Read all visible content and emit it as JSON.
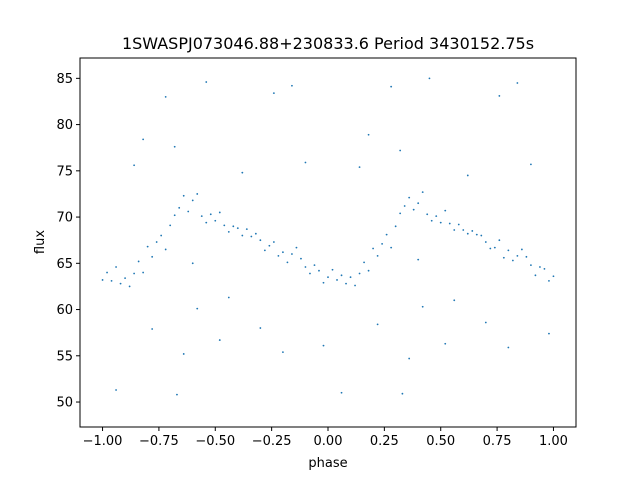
{
  "chart_data": {
    "type": "scatter",
    "title": "1SWASPJ073046.88+230833.6 Period 3430152.75s",
    "xlabel": "phase",
    "ylabel": "flux",
    "xlim": [
      -1.1,
      1.1
    ],
    "ylim": [
      47.3,
      87.2
    ],
    "grid": false,
    "legend": "none",
    "marker_color": "#1f77b4",
    "x_ticks": [
      {
        "value": -1.0,
        "label": "−1.00"
      },
      {
        "value": -0.75,
        "label": "−0.75"
      },
      {
        "value": -0.5,
        "label": "−0.50"
      },
      {
        "value": -0.25,
        "label": "−0.25"
      },
      {
        "value": 0.0,
        "label": "0.00"
      },
      {
        "value": 0.25,
        "label": "0.25"
      },
      {
        "value": 0.5,
        "label": "0.50"
      },
      {
        "value": 0.75,
        "label": "0.75"
      },
      {
        "value": 1.0,
        "label": "1.00"
      }
    ],
    "y_ticks": [
      {
        "value": 50,
        "label": "50"
      },
      {
        "value": 55,
        "label": "55"
      },
      {
        "value": 60,
        "label": "60"
      },
      {
        "value": 65,
        "label": "65"
      },
      {
        "value": 70,
        "label": "70"
      },
      {
        "value": 75,
        "label": "75"
      },
      {
        "value": 80,
        "label": "80"
      },
      {
        "value": 85,
        "label": "85"
      }
    ],
    "series": [
      {
        "points": [
          [
            -1.0,
            63.2
          ],
          [
            -0.98,
            64.0
          ],
          [
            -0.96,
            63.1
          ],
          [
            -0.94,
            64.6
          ],
          [
            -0.92,
            62.8
          ],
          [
            -0.9,
            63.4
          ],
          [
            -0.88,
            62.5
          ],
          [
            -0.86,
            63.9
          ],
          [
            -0.84,
            65.2
          ],
          [
            -0.82,
            64.0
          ],
          [
            -0.8,
            66.8
          ],
          [
            -0.78,
            65.7
          ],
          [
            -0.76,
            67.3
          ],
          [
            -0.74,
            68.0
          ],
          [
            -0.72,
            66.5
          ],
          [
            -0.7,
            69.1
          ],
          [
            -0.68,
            70.2
          ],
          [
            -0.66,
            71.0
          ],
          [
            -0.64,
            72.3
          ],
          [
            -0.62,
            70.6
          ],
          [
            -0.6,
            71.8
          ],
          [
            -0.58,
            72.5
          ],
          [
            -0.56,
            70.1
          ],
          [
            -0.54,
            69.4
          ],
          [
            -0.52,
            70.3
          ],
          [
            -0.5,
            69.6
          ],
          [
            -0.48,
            70.5
          ],
          [
            -0.46,
            69.1
          ],
          [
            -0.44,
            68.4
          ],
          [
            -0.42,
            69.0
          ],
          [
            -0.4,
            68.8
          ],
          [
            -0.38,
            68.0
          ],
          [
            -0.36,
            68.7
          ],
          [
            -0.34,
            67.9
          ],
          [
            -0.32,
            68.2
          ],
          [
            -0.3,
            67.5
          ],
          [
            -0.28,
            66.4
          ],
          [
            -0.26,
            66.9
          ],
          [
            -0.24,
            67.3
          ],
          [
            -0.22,
            65.8
          ],
          [
            -0.2,
            66.2
          ],
          [
            -0.18,
            65.1
          ],
          [
            -0.16,
            66.0
          ],
          [
            -0.14,
            66.7
          ],
          [
            -0.12,
            65.5
          ],
          [
            -0.1,
            64.6
          ],
          [
            -0.08,
            63.9
          ],
          [
            -0.06,
            64.8
          ],
          [
            -0.04,
            64.2
          ],
          [
            -0.02,
            62.9
          ],
          [
            0.0,
            63.5
          ],
          [
            0.02,
            64.3
          ],
          [
            0.04,
            63.2
          ],
          [
            0.06,
            63.7
          ],
          [
            0.08,
            62.8
          ],
          [
            0.1,
            63.5
          ],
          [
            0.12,
            62.6
          ],
          [
            0.14,
            63.9
          ],
          [
            0.16,
            65.1
          ],
          [
            0.18,
            64.2
          ],
          [
            0.2,
            66.6
          ],
          [
            0.22,
            65.8
          ],
          [
            0.24,
            67.1
          ],
          [
            0.26,
            68.1
          ],
          [
            0.28,
            66.7
          ],
          [
            0.3,
            69.0
          ],
          [
            0.32,
            70.4
          ],
          [
            0.34,
            71.2
          ],
          [
            0.36,
            72.1
          ],
          [
            0.38,
            70.8
          ],
          [
            0.4,
            71.5
          ],
          [
            0.42,
            72.7
          ],
          [
            0.44,
            70.3
          ],
          [
            0.46,
            69.6
          ],
          [
            0.48,
            70.1
          ],
          [
            0.5,
            69.4
          ],
          [
            0.52,
            70.7
          ],
          [
            0.54,
            69.3
          ],
          [
            0.56,
            68.6
          ],
          [
            0.58,
            69.2
          ],
          [
            0.6,
            68.6
          ],
          [
            0.62,
            68.2
          ],
          [
            0.64,
            68.5
          ],
          [
            0.66,
            68.1
          ],
          [
            0.68,
            68.0
          ],
          [
            0.7,
            67.3
          ],
          [
            0.72,
            66.6
          ],
          [
            0.74,
            66.7
          ],
          [
            0.76,
            67.5
          ],
          [
            0.78,
            65.6
          ],
          [
            0.8,
            66.4
          ],
          [
            0.82,
            65.3
          ],
          [
            0.84,
            65.8
          ],
          [
            0.86,
            66.5
          ],
          [
            0.88,
            65.7
          ],
          [
            0.9,
            64.8
          ],
          [
            0.92,
            63.7
          ],
          [
            0.94,
            64.6
          ],
          [
            0.96,
            64.4
          ],
          [
            0.98,
            63.1
          ],
          [
            1.0,
            63.6
          ],
          [
            -0.86,
            75.6
          ],
          [
            0.14,
            75.4
          ],
          [
            -0.72,
            83.0
          ],
          [
            0.28,
            84.1
          ],
          [
            -0.67,
            50.8
          ],
          [
            0.33,
            50.9
          ],
          [
            -0.64,
            55.2
          ],
          [
            0.36,
            54.7
          ],
          [
            -0.58,
            60.1
          ],
          [
            0.42,
            60.3
          ],
          [
            -0.54,
            84.6
          ],
          [
            0.45,
            85.0
          ],
          [
            -0.24,
            83.4
          ],
          [
            0.76,
            83.1
          ],
          [
            -0.16,
            84.2
          ],
          [
            0.84,
            84.5
          ],
          [
            -0.02,
            56.1
          ],
          [
            0.98,
            57.4
          ],
          [
            -0.94,
            51.3
          ],
          [
            0.06,
            51.0
          ],
          [
            -0.78,
            57.9
          ],
          [
            0.22,
            58.4
          ],
          [
            -0.82,
            78.4
          ],
          [
            0.18,
            78.9
          ],
          [
            -0.44,
            61.3
          ],
          [
            0.56,
            61.0
          ],
          [
            -0.3,
            58.0
          ],
          [
            0.7,
            58.6
          ],
          [
            -0.1,
            75.9
          ],
          [
            0.9,
            75.7
          ],
          [
            -0.2,
            55.4
          ],
          [
            0.8,
            55.9
          ],
          [
            -0.68,
            77.6
          ],
          [
            0.32,
            77.2
          ],
          [
            -0.6,
            65.0
          ],
          [
            0.4,
            65.4
          ],
          [
            -0.38,
            74.8
          ],
          [
            0.62,
            74.5
          ],
          [
            -0.48,
            56.7
          ],
          [
            0.52,
            56.3
          ]
        ]
      }
    ]
  }
}
